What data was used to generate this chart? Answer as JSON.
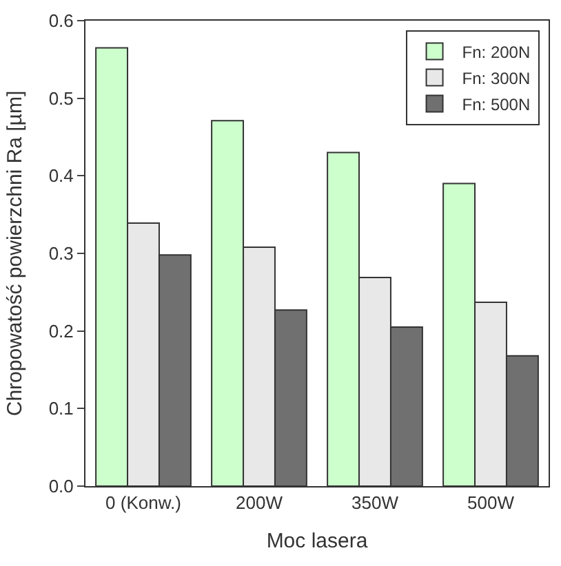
{
  "chart_data": {
    "type": "bar",
    "xlabel": "Moc lasera",
    "ylabel": "Chropowatość powierzchni Ra [µm]",
    "categories": [
      "0 (Konw.)",
      "200W",
      "350W",
      "500W"
    ],
    "series": [
      {
        "name": "Fn: 200N",
        "color": "#ccffcc",
        "values": [
          0.565,
          0.471,
          0.43,
          0.39
        ]
      },
      {
        "name": "Fn: 300N",
        "color": "#e8e8e8",
        "values": [
          0.339,
          0.308,
          0.269,
          0.237
        ]
      },
      {
        "name": "Fn: 500N",
        "color": "#707070",
        "values": [
          0.298,
          0.227,
          0.205,
          0.168
        ]
      }
    ],
    "ylim": [
      0,
      0.6
    ],
    "yticks": [
      {
        "value": 0,
        "label": "0.0"
      },
      0.1,
      0.2,
      0.3,
      0.4,
      0.5,
      0.6
    ],
    "legend": "top right"
  }
}
